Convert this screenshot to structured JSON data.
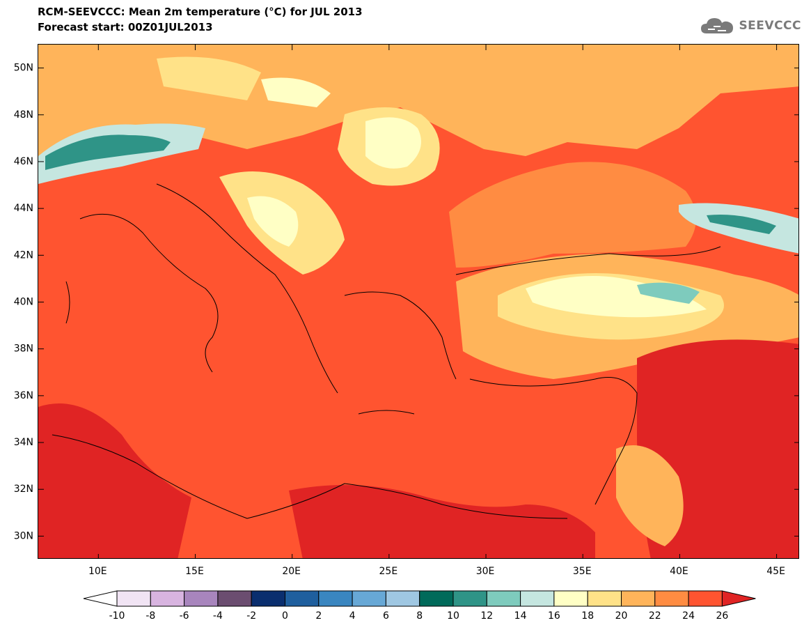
{
  "header": {
    "title_line1": "RCM-SEEVCCC: Mean 2m temperature (°C) for JUL 2013",
    "title_line2": "Forecast start: 00Z01JUL2013",
    "logo_text": "SEEVCCC",
    "logo_icon": "cloud-icon"
  },
  "map": {
    "lat_labels": [
      "50N",
      "48N",
      "46N",
      "44N",
      "42N",
      "40N",
      "38N",
      "36N",
      "34N",
      "32N",
      "30N"
    ],
    "lon_labels": [
      "10E",
      "15E",
      "20E",
      "25E",
      "30E",
      "35E",
      "40E",
      "45E"
    ],
    "lat_range": [
      29,
      51
    ],
    "lon_range": [
      6.9,
      46.2
    ]
  },
  "colorbar": {
    "ticks": [
      "-10",
      "-8",
      "-6",
      "-4",
      "-2",
      "0",
      "2",
      "4",
      "6",
      "8",
      "10",
      "12",
      "14",
      "16",
      "18",
      "20",
      "22",
      "24",
      "26"
    ],
    "colors": [
      "#f1e4f4",
      "#d8b4e0",
      "#a885bd",
      "#6b4d70",
      "#0a2e6e",
      "#1f5f9e",
      "#3a86c0",
      "#67a8d6",
      "#9fc7e2",
      "#006a5a",
      "#2f9487",
      "#7ecbbd",
      "#c5e6e0",
      "#ffffc5",
      "#ffe288",
      "#ffb45a",
      "#ff8c42",
      "#ff5430"
    ],
    "low_color": "#ffffff",
    "high_color": "#e02424"
  }
}
